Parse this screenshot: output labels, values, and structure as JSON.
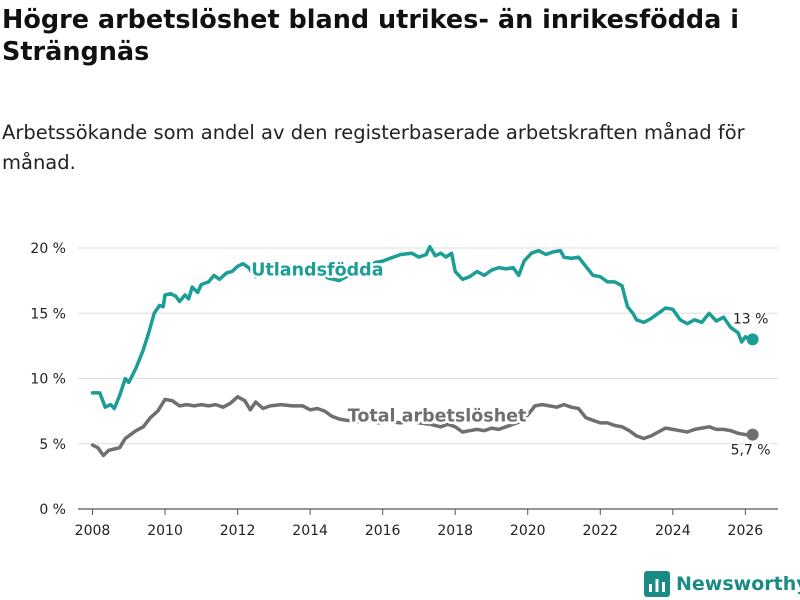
{
  "header": {
    "title": "Högre arbetslöshet bland utrikes- än inrikesfödda i Strängnäs",
    "subtitle": "Arbetssökande som andel av den registerbaserade arbetskraften månad för månad."
  },
  "brand": {
    "name": "Newsworthy",
    "icon": "newsworthy-logo-icon"
  },
  "colors": {
    "utlandsfodda": "#1a9e96",
    "total": "#6f6f6f",
    "grid": "#dddddd",
    "brand": "#1a8a85"
  },
  "chart_data": {
    "type": "line",
    "title": "Högre arbetslöshet bland utrikes- än inrikesfödda i Strängnäs",
    "xlabel": "",
    "ylabel": "",
    "xlim": [
      2007.6,
      2026.9
    ],
    "ylim": [
      0,
      20
    ],
    "y_ticks": [
      0,
      5,
      10,
      15,
      20
    ],
    "y_tick_labels": [
      "0 %",
      "5 %",
      "10 %",
      "15 %",
      "20 %"
    ],
    "x_ticks": [
      2008,
      2010,
      2012,
      2014,
      2016,
      2018,
      2020,
      2022,
      2024,
      2026
    ],
    "x_tick_labels": [
      "2008",
      "2010",
      "2012",
      "2014",
      "2016",
      "2018",
      "2020",
      "2022",
      "2024",
      "2026"
    ],
    "grid": true,
    "series": [
      {
        "name": "Utlandsfödda",
        "label": "Utlandsfödda",
        "end_label": "13 %",
        "color": "#1a9e96",
        "points": [
          [
            2008.0,
            8.9
          ],
          [
            2008.2,
            8.9
          ],
          [
            2008.35,
            7.8
          ],
          [
            2008.5,
            8.0
          ],
          [
            2008.6,
            7.7
          ],
          [
            2008.75,
            8.7
          ],
          [
            2008.9,
            10.0
          ],
          [
            2009.0,
            9.7
          ],
          [
            2009.2,
            10.8
          ],
          [
            2009.4,
            12.2
          ],
          [
            2009.55,
            13.5
          ],
          [
            2009.7,
            15.0
          ],
          [
            2009.85,
            15.6
          ],
          [
            2009.95,
            15.5
          ],
          [
            2010.0,
            16.4
          ],
          [
            2010.15,
            16.5
          ],
          [
            2010.3,
            16.3
          ],
          [
            2010.4,
            15.9
          ],
          [
            2010.55,
            16.4
          ],
          [
            2010.65,
            16.1
          ],
          [
            2010.75,
            17.0
          ],
          [
            2010.9,
            16.6
          ],
          [
            2011.0,
            17.2
          ],
          [
            2011.2,
            17.4
          ],
          [
            2011.35,
            17.9
          ],
          [
            2011.5,
            17.6
          ],
          [
            2011.7,
            18.1
          ],
          [
            2011.85,
            18.2
          ],
          [
            2012.0,
            18.6
          ],
          [
            2012.15,
            18.8
          ],
          [
            2012.3,
            18.5
          ],
          [
            2012.5,
            17.8
          ],
          [
            2012.7,
            18.3
          ],
          [
            2012.9,
            18.0
          ],
          [
            2013.1,
            18.4
          ],
          [
            2013.3,
            18.7
          ],
          [
            2013.5,
            18.6
          ],
          [
            2013.8,
            18.4
          ],
          [
            2014.0,
            18.5
          ],
          [
            2014.2,
            18.2
          ],
          [
            2014.5,
            17.7
          ],
          [
            2014.8,
            17.5
          ],
          [
            2015.0,
            17.8
          ],
          [
            2015.3,
            18.2
          ],
          [
            2015.6,
            18.5
          ],
          [
            2015.8,
            18.9
          ],
          [
            2016.0,
            19.0
          ],
          [
            2016.2,
            19.2
          ],
          [
            2016.5,
            19.5
          ],
          [
            2016.8,
            19.6
          ],
          [
            2017.0,
            19.3
          ],
          [
            2017.2,
            19.5
          ],
          [
            2017.3,
            20.1
          ],
          [
            2017.45,
            19.4
          ],
          [
            2017.6,
            19.6
          ],
          [
            2017.75,
            19.3
          ],
          [
            2017.9,
            19.6
          ],
          [
            2018.0,
            18.2
          ],
          [
            2018.2,
            17.6
          ],
          [
            2018.4,
            17.8
          ],
          [
            2018.6,
            18.2
          ],
          [
            2018.8,
            17.9
          ],
          [
            2019.0,
            18.3
          ],
          [
            2019.2,
            18.5
          ],
          [
            2019.4,
            18.4
          ],
          [
            2019.6,
            18.5
          ],
          [
            2019.75,
            17.9
          ],
          [
            2019.9,
            19.0
          ],
          [
            2020.1,
            19.6
          ],
          [
            2020.3,
            19.8
          ],
          [
            2020.5,
            19.5
          ],
          [
            2020.7,
            19.7
          ],
          [
            2020.9,
            19.8
          ],
          [
            2021.0,
            19.3
          ],
          [
            2021.2,
            19.2
          ],
          [
            2021.4,
            19.3
          ],
          [
            2021.6,
            18.6
          ],
          [
            2021.8,
            17.9
          ],
          [
            2022.0,
            17.8
          ],
          [
            2022.2,
            17.4
          ],
          [
            2022.4,
            17.4
          ],
          [
            2022.6,
            17.1
          ],
          [
            2022.75,
            15.5
          ],
          [
            2022.9,
            15.0
          ],
          [
            2023.0,
            14.5
          ],
          [
            2023.2,
            14.3
          ],
          [
            2023.4,
            14.6
          ],
          [
            2023.6,
            15.0
          ],
          [
            2023.8,
            15.4
          ],
          [
            2024.0,
            15.3
          ],
          [
            2024.2,
            14.5
          ],
          [
            2024.4,
            14.2
          ],
          [
            2024.6,
            14.5
          ],
          [
            2024.8,
            14.3
          ],
          [
            2025.0,
            15.0
          ],
          [
            2025.2,
            14.4
          ],
          [
            2025.4,
            14.7
          ],
          [
            2025.6,
            13.9
          ],
          [
            2025.8,
            13.5
          ],
          [
            2025.9,
            12.8
          ],
          [
            2026.0,
            13.2
          ],
          [
            2026.1,
            13.0
          ],
          [
            2026.2,
            13.0
          ]
        ]
      },
      {
        "name": "Total arbetslöshet",
        "label": "Total arbetslöshet",
        "end_label": "5,7 %",
        "color": "#6f6f6f",
        "points": [
          [
            2008.0,
            4.9
          ],
          [
            2008.15,
            4.7
          ],
          [
            2008.3,
            4.1
          ],
          [
            2008.45,
            4.5
          ],
          [
            2008.6,
            4.6
          ],
          [
            2008.75,
            4.7
          ],
          [
            2008.9,
            5.4
          ],
          [
            2009.05,
            5.7
          ],
          [
            2009.2,
            6.0
          ],
          [
            2009.4,
            6.3
          ],
          [
            2009.6,
            7.0
          ],
          [
            2009.8,
            7.5
          ],
          [
            2010.0,
            8.4
          ],
          [
            2010.2,
            8.3
          ],
          [
            2010.4,
            7.9
          ],
          [
            2010.6,
            8.0
          ],
          [
            2010.8,
            7.9
          ],
          [
            2011.0,
            8.0
          ],
          [
            2011.2,
            7.9
          ],
          [
            2011.4,
            8.0
          ],
          [
            2011.6,
            7.8
          ],
          [
            2011.8,
            8.1
          ],
          [
            2012.0,
            8.6
          ],
          [
            2012.2,
            8.3
          ],
          [
            2012.35,
            7.6
          ],
          [
            2012.5,
            8.2
          ],
          [
            2012.7,
            7.7
          ],
          [
            2012.9,
            7.9
          ],
          [
            2013.2,
            8.0
          ],
          [
            2013.5,
            7.9
          ],
          [
            2013.8,
            7.9
          ],
          [
            2014.0,
            7.6
          ],
          [
            2014.2,
            7.7
          ],
          [
            2014.4,
            7.5
          ],
          [
            2014.6,
            7.1
          ],
          [
            2014.8,
            6.9
          ],
          [
            2015.0,
            6.8
          ],
          [
            2015.3,
            6.7
          ],
          [
            2015.6,
            6.8
          ],
          [
            2015.9,
            6.6
          ],
          [
            2016.0,
            6.9
          ],
          [
            2016.2,
            6.7
          ],
          [
            2016.5,
            6.6
          ],
          [
            2016.8,
            6.8
          ],
          [
            2017.0,
            6.6
          ],
          [
            2017.3,
            6.5
          ],
          [
            2017.6,
            6.3
          ],
          [
            2017.8,
            6.5
          ],
          [
            2018.0,
            6.3
          ],
          [
            2018.2,
            5.9
          ],
          [
            2018.4,
            6.0
          ],
          [
            2018.6,
            6.1
          ],
          [
            2018.8,
            6.0
          ],
          [
            2019.0,
            6.2
          ],
          [
            2019.2,
            6.1
          ],
          [
            2019.4,
            6.3
          ],
          [
            2019.6,
            6.5
          ],
          [
            2019.8,
            6.7
          ],
          [
            2020.0,
            7.2
          ],
          [
            2020.2,
            7.9
          ],
          [
            2020.4,
            8.0
          ],
          [
            2020.6,
            7.9
          ],
          [
            2020.8,
            7.8
          ],
          [
            2021.0,
            8.0
          ],
          [
            2021.2,
            7.8
          ],
          [
            2021.4,
            7.7
          ],
          [
            2021.6,
            7.0
          ],
          [
            2021.8,
            6.8
          ],
          [
            2022.0,
            6.6
          ],
          [
            2022.2,
            6.6
          ],
          [
            2022.4,
            6.4
          ],
          [
            2022.6,
            6.3
          ],
          [
            2022.8,
            6.0
          ],
          [
            2023.0,
            5.6
          ],
          [
            2023.2,
            5.4
          ],
          [
            2023.4,
            5.6
          ],
          [
            2023.6,
            5.9
          ],
          [
            2023.8,
            6.2
          ],
          [
            2024.0,
            6.1
          ],
          [
            2024.2,
            6.0
          ],
          [
            2024.4,
            5.9
          ],
          [
            2024.6,
            6.1
          ],
          [
            2024.8,
            6.2
          ],
          [
            2025.0,
            6.3
          ],
          [
            2025.2,
            6.1
          ],
          [
            2025.4,
            6.1
          ],
          [
            2025.6,
            6.0
          ],
          [
            2025.8,
            5.8
          ],
          [
            2026.0,
            5.7
          ],
          [
            2026.2,
            5.7
          ]
        ]
      }
    ]
  }
}
